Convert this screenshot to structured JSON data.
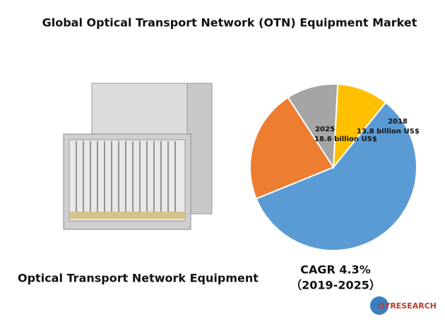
{
  "chart_data": {
    "type": "pie",
    "title": "Global Optical Transport Network (OTN) Equipment Market",
    "values": [
      10,
      58,
      22,
      10
    ],
    "colors": [
      "#ffc000",
      "#5b9bd5",
      "#ed7d31",
      "#a5a5a5"
    ],
    "annotations": [
      {
        "year": "2025",
        "text": "18.6 billion US$"
      },
      {
        "year": "2018",
        "text": "13.8 billion US$"
      }
    ],
    "caption": "Optical Transport Network Equipment",
    "cagr": "CAGR 4.3%",
    "period": "（2019-2025）",
    "logo": "QYRESEARCH"
  }
}
